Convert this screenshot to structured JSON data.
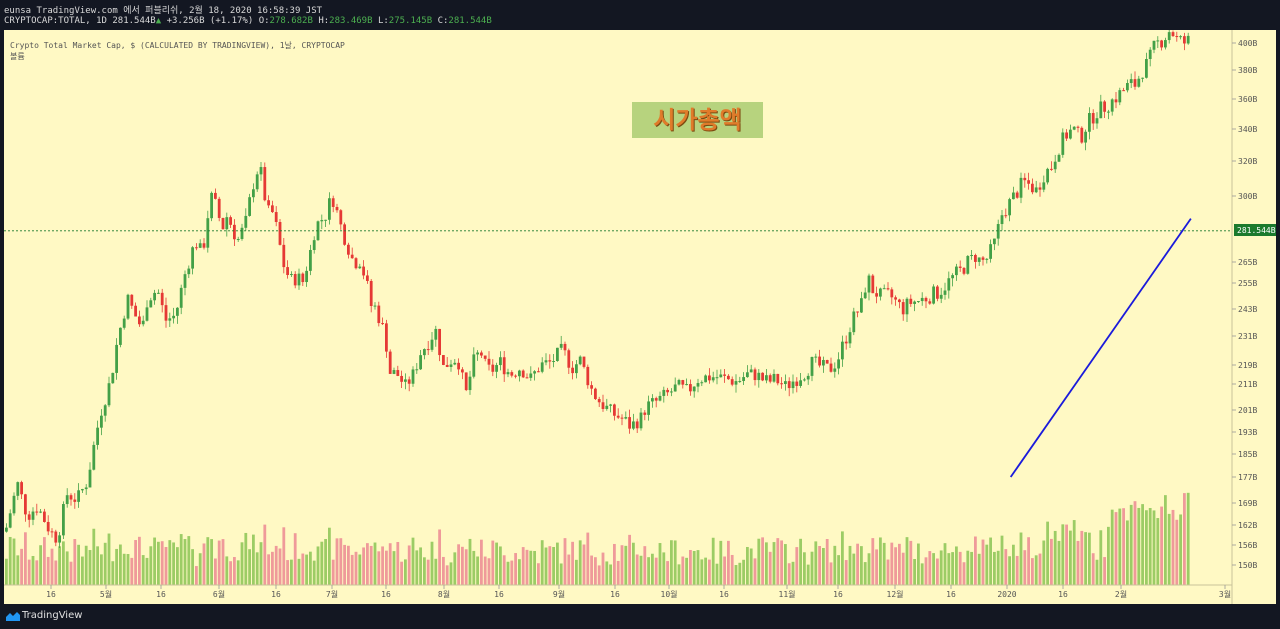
{
  "header": {
    "line1": "eunsa TradingView.com 에서 퍼블리쉬, 2월 18, 2020 16:58:39 JST",
    "symbol": "CRYPTOCAP:TOTAL, 1D 281.544B",
    "change_arrow": "▲",
    "change": "+3.256B (+1.17%)",
    "o_label": "O:",
    "o_value": "278.682B",
    "h_label": "H:",
    "h_value": "283.469B",
    "l_label": "L:",
    "l_value": "275.145B",
    "c_label": "C:",
    "c_value": "281.544B"
  },
  "legend": {
    "title": "Crypto Total Market Cap, $ (CALCULATED BY TRADINGVIEW), 1날, CRYPTOCAP",
    "volume_label": "볼륨"
  },
  "annotation": "시가총액",
  "footer": {
    "brand": "TradingView"
  },
  "colors": {
    "up": "#43a047",
    "down": "#e53935",
    "vol_up": "#9ccc65",
    "vol_down": "#ef9a9a",
    "trend": "#1a1adb",
    "price_badge": "#1b7a2e",
    "background": "#fff9c4"
  },
  "chart_data": {
    "type": "candlestick",
    "y_unit": "USD billions",
    "y_ticks": [
      "400B",
      "380B",
      "360B",
      "340B",
      "320B",
      "300B",
      "265B",
      "255B",
      "243B",
      "231B",
      "219B",
      "211B",
      "201B",
      "193B",
      "185B",
      "177B",
      "169B",
      "162B",
      "156B",
      "150B"
    ],
    "x_ticks": [
      "16",
      "5월",
      "16",
      "6월",
      "16",
      "7월",
      "16",
      "8월",
      "16",
      "9월",
      "16",
      "10월",
      "16",
      "11월",
      "16",
      "12월",
      "16",
      "2020",
      "16",
      "2월",
      "3월"
    ],
    "last_price_label": "281.544B",
    "anchors": [
      [
        0,
        160
      ],
      [
        12,
        175
      ],
      [
        22,
        165
      ],
      [
        32,
        168
      ],
      [
        45,
        160
      ],
      [
        52,
        158
      ],
      [
        62,
        172
      ],
      [
        72,
        170
      ],
      [
        82,
        176
      ],
      [
        95,
        200
      ],
      [
        105,
        212
      ],
      [
        112,
        229
      ],
      [
        122,
        248
      ],
      [
        130,
        240
      ],
      [
        137,
        234
      ],
      [
        142,
        248
      ],
      [
        152,
        252
      ],
      [
        160,
        238
      ],
      [
        170,
        240
      ],
      [
        180,
        260
      ],
      [
        190,
        276
      ],
      [
        197,
        269
      ],
      [
        205,
        300
      ],
      [
        210,
        295
      ],
      [
        217,
        283
      ],
      [
        222,
        290
      ],
      [
        232,
        276
      ],
      [
        240,
        285
      ],
      [
        249,
        310
      ],
      [
        254,
        318
      ],
      [
        262,
        291
      ],
      [
        268,
        291
      ],
      [
        278,
        264
      ],
      [
        285,
        256
      ],
      [
        292,
        258
      ],
      [
        297,
        255
      ],
      [
        304,
        268
      ],
      [
        310,
        284
      ],
      [
        320,
        290
      ],
      [
        327,
        300
      ],
      [
        336,
        283
      ],
      [
        348,
        265
      ],
      [
        355,
        266
      ],
      [
        362,
        253
      ],
      [
        367,
        242
      ],
      [
        370,
        244
      ],
      [
        380,
        231
      ],
      [
        384,
        216
      ],
      [
        392,
        215
      ],
      [
        400,
        210
      ],
      [
        408,
        215
      ],
      [
        415,
        224
      ],
      [
        425,
        230
      ],
      [
        430,
        234
      ],
      [
        438,
        218
      ],
      [
        448,
        222
      ],
      [
        454,
        220
      ],
      [
        460,
        206
      ],
      [
        468,
        220
      ],
      [
        475,
        225
      ],
      [
        481,
        217
      ],
      [
        487,
        217
      ],
      [
        495,
        220
      ],
      [
        505,
        215
      ],
      [
        515,
        218
      ],
      [
        525,
        213
      ],
      [
        535,
        219
      ],
      [
        545,
        220
      ],
      [
        557,
        225
      ],
      [
        567,
        218
      ],
      [
        575,
        221
      ],
      [
        587,
        208
      ],
      [
        595,
        204
      ],
      [
        606,
        200
      ],
      [
        616,
        198
      ],
      [
        626,
        195
      ],
      [
        631,
        197
      ],
      [
        636,
        198
      ],
      [
        640,
        202
      ],
      [
        650,
        204
      ],
      [
        662,
        207
      ],
      [
        672,
        210
      ],
      [
        682,
        208
      ],
      [
        692,
        213
      ],
      [
        702,
        214
      ],
      [
        712,
        214
      ],
      [
        722,
        213
      ],
      [
        732,
        212
      ],
      [
        741,
        215
      ],
      [
        751,
        215
      ],
      [
        757,
        213
      ],
      [
        763,
        212
      ],
      [
        770,
        213
      ],
      [
        780,
        210
      ],
      [
        790,
        213
      ],
      [
        800,
        216
      ],
      [
        807,
        220
      ],
      [
        817,
        218
      ],
      [
        824,
        217
      ],
      [
        832,
        221
      ],
      [
        841,
        231
      ],
      [
        847,
        238
      ],
      [
        856,
        245
      ],
      [
        862,
        258
      ],
      [
        867,
        252
      ],
      [
        875,
        249
      ],
      [
        885,
        249
      ],
      [
        897,
        243
      ],
      [
        905,
        246
      ],
      [
        915,
        247
      ],
      [
        924,
        249
      ],
      [
        934,
        251
      ],
      [
        944,
        256
      ],
      [
        950,
        259
      ],
      [
        956,
        261
      ],
      [
        962,
        265
      ],
      [
        970,
        268
      ],
      [
        976,
        265
      ],
      [
        982,
        267
      ],
      [
        989,
        275
      ],
      [
        997,
        291
      ],
      [
        1004,
        296
      ],
      [
        1010,
        301
      ],
      [
        1018,
        308
      ],
      [
        1025,
        306
      ],
      [
        1031,
        303
      ],
      [
        1038,
        312
      ],
      [
        1046,
        317
      ],
      [
        1053,
        328
      ],
      [
        1060,
        336
      ],
      [
        1068,
        340
      ],
      [
        1075,
        334
      ],
      [
        1082,
        344
      ],
      [
        1092,
        352
      ],
      [
        1102,
        356
      ],
      [
        1112,
        362
      ],
      [
        1118,
        366
      ],
      [
        1124,
        370
      ],
      [
        1130,
        370
      ],
      [
        1137,
        380
      ],
      [
        1143,
        386
      ],
      [
        1150,
        399
      ],
      [
        1155,
        401
      ],
      [
        1160,
        405
      ],
      [
        1165,
        410
      ],
      [
        1172,
        402
      ],
      [
        1180,
        400
      ],
      [
        1184,
        402
      ]
    ],
    "trendline": {
      "start": {
        "date": "2020-01-02",
        "price_b": 177
      },
      "end": {
        "date": "2020-02-20",
        "price_b": 288
      }
    }
  }
}
